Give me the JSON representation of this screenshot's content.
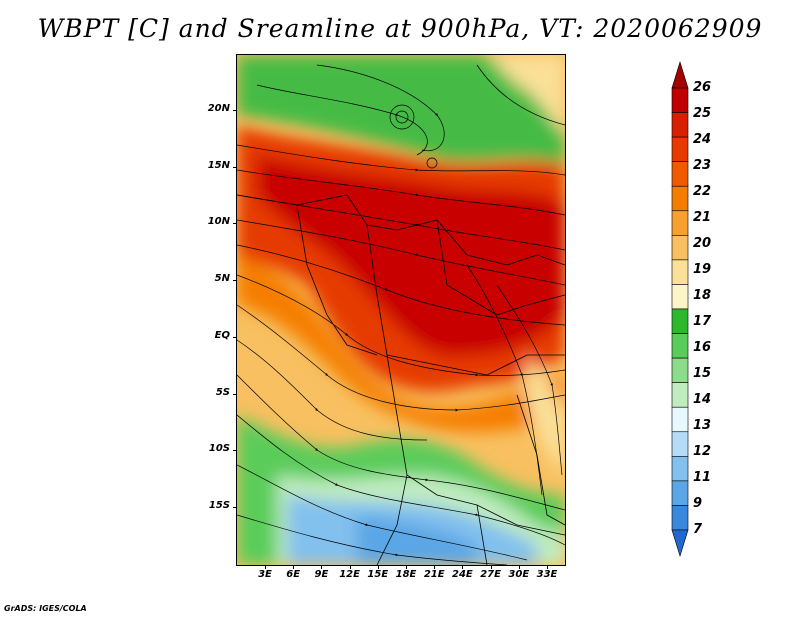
{
  "title": "WBPT [C] and Sreamline at 900hPa, VT: 2020062909",
  "credit": "GrADS: IGES/COLA",
  "map": {
    "variable": "WBPT",
    "units": "C",
    "level": "900hPa",
    "valid_time": "2020062909",
    "lat_labels": [
      "20N",
      "15N",
      "10N",
      "5N",
      "EQ",
      "5S",
      "10S",
      "15S"
    ],
    "lon_labels": [
      "3E",
      "6E",
      "9E",
      "12E",
      "15E",
      "18E",
      "21E",
      "24E",
      "27E",
      "30E",
      "33E"
    ],
    "lat_range": [
      -20,
      24
    ],
    "lon_range": [
      0,
      35
    ]
  },
  "colorbar": {
    "labels": [
      "26",
      "25",
      "24",
      "23",
      "22",
      "21",
      "20",
      "19",
      "18",
      "17",
      "16",
      "15",
      "14",
      "13",
      "12",
      "11",
      "9",
      "7"
    ],
    "colors": [
      "#a50000",
      "#c00000",
      "#d72000",
      "#e63a00",
      "#f05a00",
      "#f57e00",
      "#f7a030",
      "#f8c060",
      "#fae098",
      "#fbf5c8",
      "#2eb82e",
      "#5acc5a",
      "#8cdc8c",
      "#c0ecc0",
      "#e8f8ff",
      "#b4dcf6",
      "#82c0ee",
      "#5aa6e6",
      "#3a88dc",
      "#2068d0"
    ]
  }
}
